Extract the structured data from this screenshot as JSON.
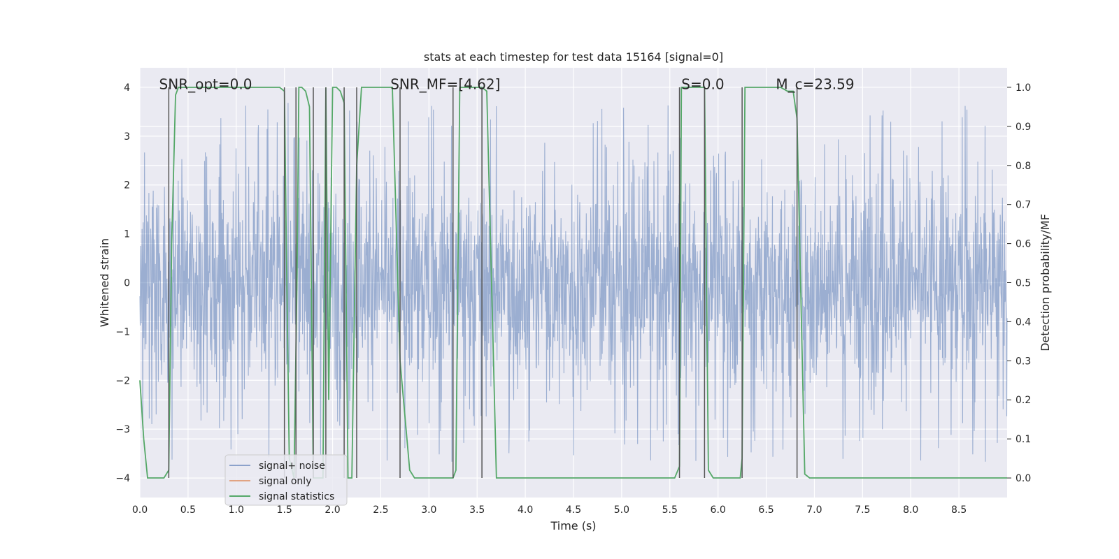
{
  "chart_data": {
    "type": "line",
    "title": "stats at each timestep for test data 15164 [signal=0]",
    "xlabel": "Time (s)",
    "ylabel": "Whitened strain",
    "ylabel_right": "Detection probability/MF",
    "xlim": [
      0.0,
      9.0
    ],
    "ylim": [
      -4.4,
      4.4
    ],
    "ylim_right": [
      -0.05,
      1.05
    ],
    "x_ticks": [
      "0.0",
      "0.5",
      "1.0",
      "1.5",
      "2.0",
      "2.5",
      "3.0",
      "3.5",
      "4.0",
      "4.5",
      "5.0",
      "5.5",
      "6.0",
      "6.5",
      "7.0",
      "7.5",
      "8.0",
      "8.5"
    ],
    "x_tick_values": [
      0.0,
      0.5,
      1.0,
      1.5,
      2.0,
      2.5,
      3.0,
      3.5,
      4.0,
      4.5,
      5.0,
      5.5,
      6.0,
      6.5,
      7.0,
      7.5,
      8.0,
      8.5
    ],
    "y_ticks": [
      "4",
      "3",
      "2",
      "1",
      "0",
      "−1",
      "−2",
      "−3",
      "−4"
    ],
    "y_tick_values": [
      4,
      3,
      2,
      1,
      0,
      -1,
      -2,
      -3,
      -4
    ],
    "y_right_ticks": [
      "1.0",
      "0.9",
      "0.8",
      "0.7",
      "0.6",
      "0.5",
      "0.4",
      "0.3",
      "0.2",
      "0.1",
      "0.0"
    ],
    "y_right_tick_values": [
      1.0,
      0.9,
      0.8,
      0.7,
      0.6,
      0.5,
      0.4,
      0.3,
      0.2,
      0.1,
      0.0
    ],
    "annotations": [
      {
        "text": "SNR_opt=0.0",
        "x": 0.2,
        "y": 4.05
      },
      {
        "text": "SNR_MF=[4.62]",
        "x": 2.6,
        "y": 4.05
      },
      {
        "text": "S=0.0",
        "x": 5.62,
        "y": 4.05
      },
      {
        "text": "M_c=23.59",
        "x": 6.6,
        "y": 4.05
      }
    ],
    "legend": {
      "position": "lower-left",
      "entries": [
        "signal+ noise",
        "signal only",
        "signal statistics"
      ]
    },
    "colors": {
      "noise": "#4c72b0",
      "signal": "#dd8452",
      "stats": "#55a868",
      "vlines": "#555555",
      "background": "#eaeaf2",
      "grid": "#ffffff"
    },
    "series": [
      {
        "name": "signal+ noise",
        "description": "whitened strain, dense noise band approx +/-3 with peaks to about 3.8 and troughs to about -3.9",
        "amplitude_envelope": 3.0
      },
      {
        "name": "signal only",
        "values": []
      },
      {
        "name": "signal statistics",
        "axis": "right",
        "x": [
          0.0,
          0.04,
          0.08,
          0.25,
          0.3,
          0.33,
          0.37,
          0.4,
          1.45,
          1.5,
          1.52,
          1.55,
          1.6,
          1.63,
          1.65,
          1.68,
          1.72,
          1.76,
          1.8,
          1.83,
          1.86,
          1.9,
          1.93,
          1.96,
          2.0,
          2.04,
          2.08,
          2.12,
          2.16,
          2.2,
          2.25,
          2.3,
          2.35,
          2.4,
          2.62,
          2.7,
          2.8,
          2.85,
          2.9,
          3.25,
          3.28,
          3.32,
          3.38,
          3.55,
          3.6,
          3.7,
          5.55,
          5.6,
          5.62,
          5.67,
          5.7,
          5.86,
          5.9,
          5.95,
          6.0,
          6.23,
          6.25,
          6.28,
          6.35,
          6.55,
          6.65,
          6.72,
          6.78,
          6.82,
          6.9,
          6.95,
          7.0,
          9.0
        ],
        "values": [
          0.25,
          0.1,
          0.0,
          0.0,
          0.02,
          0.6,
          0.98,
          1.0,
          1.0,
          0.99,
          0.6,
          0.05,
          0.0,
          0.5,
          1.0,
          1.0,
          0.99,
          0.95,
          0.0,
          0.0,
          0.0,
          0.0,
          1.0,
          0.2,
          1.0,
          1.0,
          0.99,
          0.96,
          0.0,
          0.0,
          0.8,
          1.0,
          1.0,
          1.0,
          1.0,
          0.3,
          0.02,
          0.0,
          0.0,
          0.0,
          0.02,
          1.0,
          1.0,
          1.0,
          0.99,
          0.0,
          0.0,
          0.03,
          1.0,
          1.0,
          1.0,
          1.0,
          0.02,
          0.0,
          0.0,
          0.0,
          0.05,
          1.0,
          1.0,
          1.0,
          1.0,
          0.99,
          0.99,
          0.92,
          0.01,
          0.0,
          0.0,
          0.0
        ]
      }
    ],
    "vlines": [
      0.3,
      1.5,
      1.62,
      1.8,
      1.93,
      2.12,
      2.25,
      2.7,
      3.25,
      3.55,
      5.6,
      5.86,
      6.25,
      6.82
    ]
  }
}
